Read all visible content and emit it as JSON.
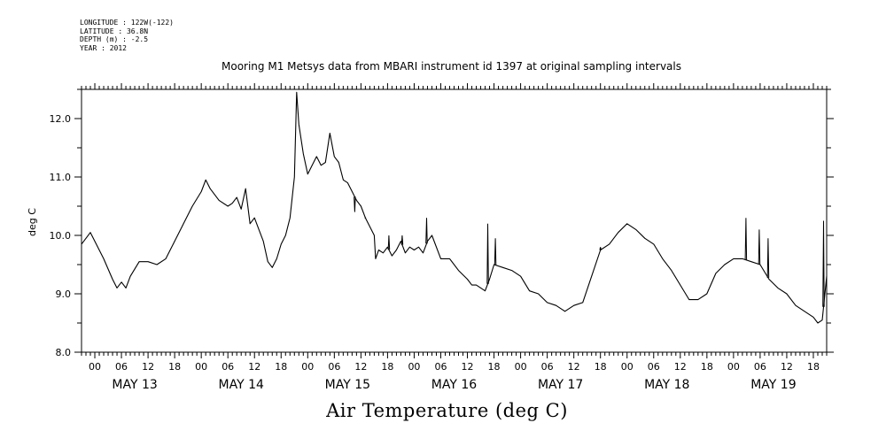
{
  "header": {
    "longitude": "LONGITUDE : 122W(-122)",
    "latitude": "LATITUDE : 36.8N",
    "depth": "DEPTH (m) : -2.5",
    "year": "YEAR : 2012"
  },
  "chart_data": {
    "type": "line",
    "title": "Mooring M1 Metsys data from MBARI instrument id 1397 at original sampling intervals",
    "xlabel": "Air Temperature (deg C)",
    "ylabel": "deg C",
    "ylim": [
      8.0,
      12.5
    ],
    "yticks": [
      8.0,
      9.0,
      10.0,
      11.0,
      12.0
    ],
    "xlim_hours": [
      -3,
      165
    ],
    "hour_tick_labels": [
      "00",
      "06",
      "12",
      "18"
    ],
    "day_labels": [
      "MAY 13",
      "MAY 14",
      "MAY 15",
      "MAY 16",
      "MAY 17",
      "MAY 18",
      "MAY 19"
    ],
    "series": [
      {
        "x_hours": [
          -3,
          -1,
          0,
          2,
          4,
          5,
          6,
          7,
          8,
          10,
          12,
          14,
          16,
          18,
          20,
          22,
          24,
          25,
          26,
          28,
          30,
          31,
          32,
          33,
          34,
          35,
          36,
          37,
          38,
          39,
          40,
          41,
          42,
          43,
          44,
          45,
          45.5,
          46,
          47,
          48,
          49,
          50,
          51,
          52,
          53,
          54,
          55,
          56,
          57,
          58,
          59,
          60,
          61,
          62,
          63,
          63.3,
          64,
          65,
          66,
          67,
          68,
          69,
          70,
          71,
          72,
          73,
          74,
          75,
          76,
          78,
          80,
          82,
          84,
          85,
          86,
          88,
          89,
          90,
          92,
          94,
          96,
          98,
          100,
          102,
          104,
          106,
          108,
          110,
          112,
          114,
          116,
          118,
          120,
          122,
          124,
          126,
          128,
          130,
          132,
          134,
          136,
          138,
          140,
          142,
          144,
          146,
          148,
          150,
          152,
          154,
          156,
          158,
          160,
          162,
          163,
          164,
          165
        ],
        "values": [
          9.85,
          10.05,
          9.9,
          9.6,
          9.25,
          9.1,
          9.2,
          9.1,
          9.3,
          9.55,
          9.55,
          9.5,
          9.6,
          9.9,
          10.2,
          10.5,
          10.75,
          10.95,
          10.8,
          10.6,
          10.5,
          10.55,
          10.65,
          10.45,
          10.8,
          10.2,
          10.3,
          10.1,
          9.9,
          9.55,
          9.45,
          9.6,
          9.85,
          10.0,
          10.3,
          11.0,
          12.45,
          11.9,
          11.4,
          11.05,
          11.2,
          11.35,
          11.2,
          11.25,
          11.75,
          11.35,
          11.25,
          10.95,
          10.9,
          10.75,
          10.6,
          10.5,
          10.3,
          10.15,
          10.0,
          9.6,
          9.75,
          9.7,
          9.8,
          9.65,
          9.75,
          9.9,
          9.7,
          9.8,
          9.75,
          9.8,
          9.7,
          9.9,
          10.0,
          9.6,
          9.6,
          9.4,
          9.25,
          9.15,
          9.15,
          9.05,
          9.25,
          9.5,
          9.45,
          9.4,
          9.3,
          9.05,
          9.0,
          8.85,
          8.8,
          8.7,
          8.8,
          8.85,
          9.3,
          9.75,
          9.85,
          10.05,
          10.2,
          10.1,
          9.95,
          9.85,
          9.6,
          9.4,
          9.15,
          8.9,
          8.9,
          9.0,
          9.35,
          9.5,
          9.6,
          9.6,
          9.55,
          9.5,
          9.25,
          9.1,
          9.0,
          8.8,
          8.7,
          8.6,
          8.5,
          8.55,
          9.3
        ]
      }
    ],
    "spikes": [
      {
        "x_hours": 58.6,
        "value": 10.4
      },
      {
        "x_hours": 61.0,
        "value": 10.3
      },
      {
        "x_hours": 66.3,
        "value": 10.0
      },
      {
        "x_hours": 69.3,
        "value": 10.0
      },
      {
        "x_hours": 74.8,
        "value": 10.3
      },
      {
        "x_hours": 88.6,
        "value": 10.2
      },
      {
        "x_hours": 90.3,
        "value": 9.95
      },
      {
        "x_hours": 114.0,
        "value": 9.8
      },
      {
        "x_hours": 146.8,
        "value": 10.3
      },
      {
        "x_hours": 149.8,
        "value": 10.1
      },
      {
        "x_hours": 151.8,
        "value": 9.95
      },
      {
        "x_hours": 164.3,
        "value": 10.25
      }
    ],
    "grid": false
  }
}
